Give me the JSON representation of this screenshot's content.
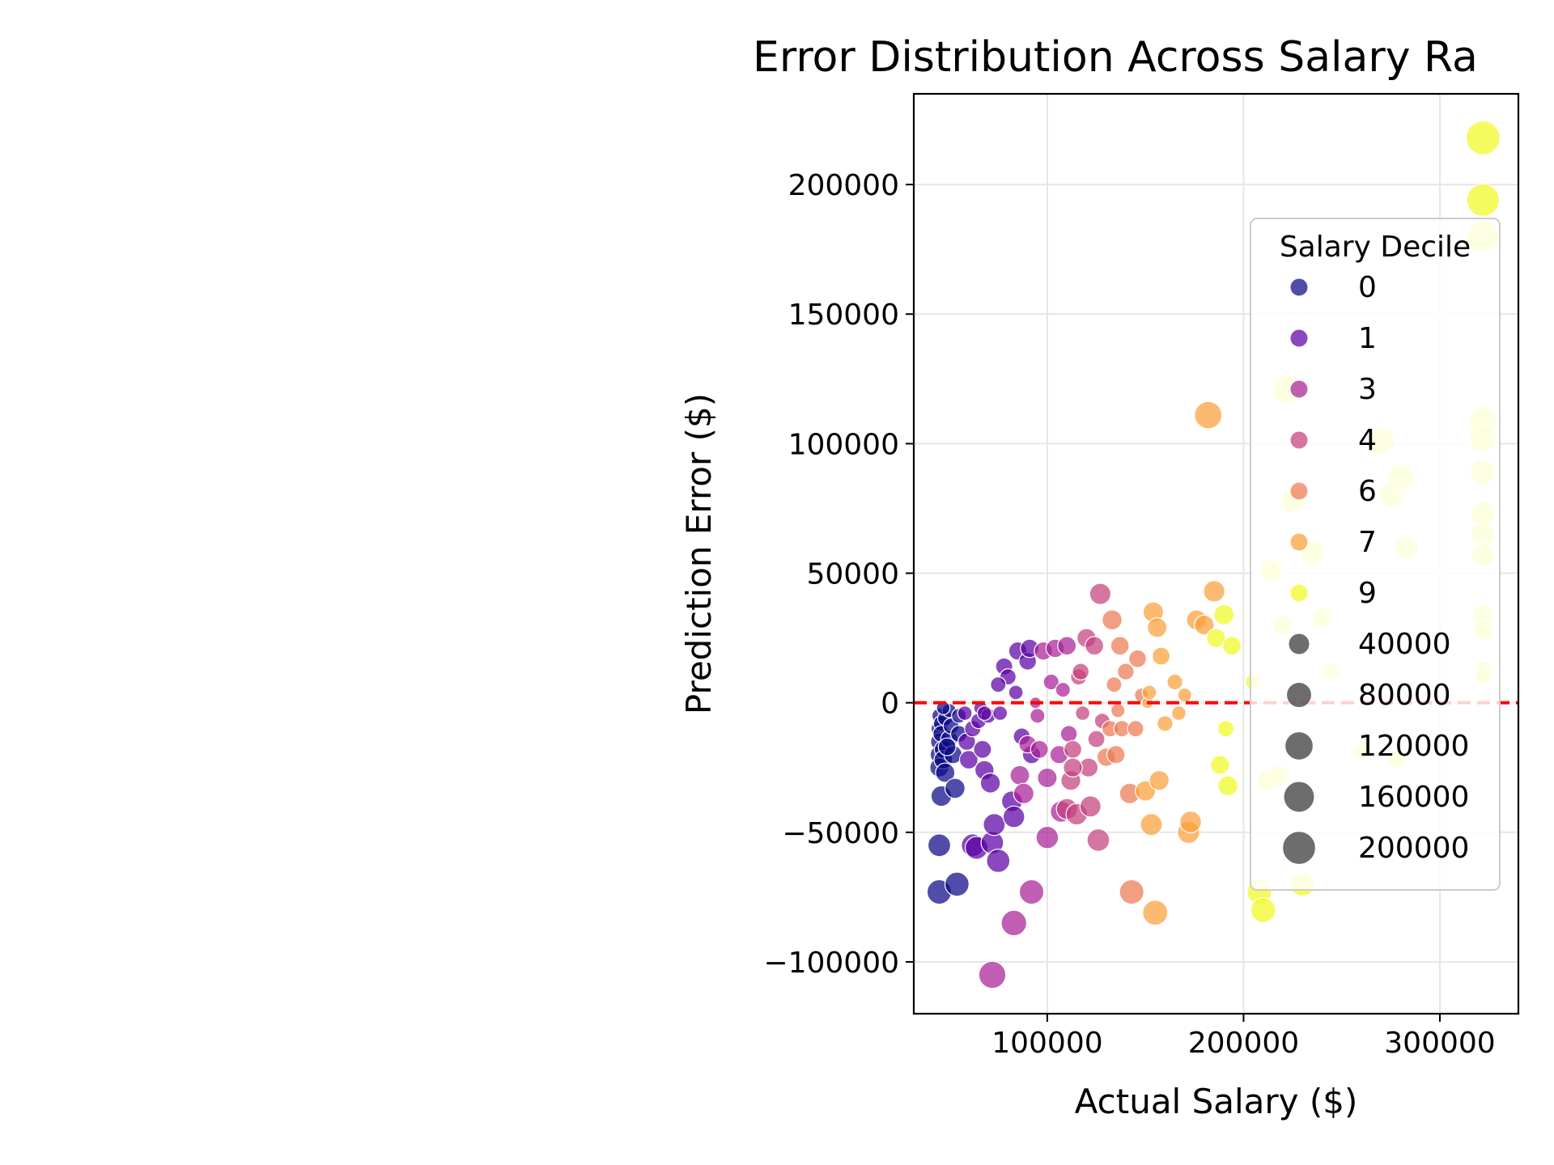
{
  "chart_data": {
    "type": "scatter",
    "title": "Error Distribution Across Salary Ra",
    "xlabel": "Actual Salary ($)",
    "ylabel": "Prediction Error ($)",
    "xlim": [
      32000,
      340000
    ],
    "ylim": [
      -120000,
      235000
    ],
    "xticks": [
      100000,
      200000,
      300000
    ],
    "xtick_labels": [
      "100000",
      "200000",
      "300000"
    ],
    "yticks": [
      -100000,
      -50000,
      0,
      50000,
      100000,
      150000,
      200000
    ],
    "ytick_labels": [
      "−100000",
      "−50000",
      "0",
      "50000",
      "100000",
      "150000",
      "200000"
    ],
    "grid": true,
    "reference_line": {
      "y": 0,
      "color": "#ff0000",
      "style": "dashed"
    },
    "legend": {
      "title": "Salary Decile",
      "placement": "right",
      "hue_entries": [
        {
          "label": "0",
          "color": "#0d0887"
        },
        {
          "label": "1",
          "color": "#5b02a3"
        },
        {
          "label": "3",
          "color": "#a72197"
        },
        {
          "label": "4",
          "color": "#c5407e"
        },
        {
          "label": "6",
          "color": "#ed7953"
        },
        {
          "label": "7",
          "color": "#fb9f3a"
        },
        {
          "label": "9",
          "color": "#f0f921"
        }
      ],
      "size_entries": [
        {
          "label": "40000",
          "value": 40000
        },
        {
          "label": "80000",
          "value": 80000
        },
        {
          "label": "120000",
          "value": 120000
        },
        {
          "label": "160000",
          "value": 160000
        },
        {
          "label": "200000",
          "value": 200000
        }
      ]
    },
    "points": [
      [
        45000,
        -5000,
        0
      ],
      [
        45000,
        -10000,
        0
      ],
      [
        45000,
        -15000,
        0
      ],
      [
        45000,
        -20000,
        0
      ],
      [
        45000,
        -25000,
        0
      ],
      [
        46000,
        -8000,
        0
      ],
      [
        46000,
        -12000,
        0
      ],
      [
        47000,
        -18000,
        0
      ],
      [
        47000,
        -22000,
        0
      ],
      [
        48000,
        -6000,
        0
      ],
      [
        48000,
        -27000,
        0
      ],
      [
        46000,
        -36000,
        0
      ],
      [
        45000,
        -55000,
        0
      ],
      [
        45000,
        -73000,
        0
      ],
      [
        50000,
        -3000,
        0
      ],
      [
        50000,
        -14000,
        0
      ],
      [
        51000,
        -9000,
        0
      ],
      [
        52000,
        -20000,
        0
      ],
      [
        53000,
        -33000,
        0
      ],
      [
        54000,
        -70000,
        0
      ],
      [
        55000,
        -5000,
        0
      ],
      [
        55000,
        -12000,
        0
      ],
      [
        49000,
        -17000,
        0
      ],
      [
        47000,
        -2000,
        0
      ],
      [
        58000,
        -4000,
        1
      ],
      [
        59000,
        -15000,
        1
      ],
      [
        60000,
        -22000,
        1
      ],
      [
        62000,
        -10000,
        1
      ],
      [
        62000,
        -55000,
        1
      ],
      [
        64000,
        -56000,
        1
      ],
      [
        65000,
        -7000,
        1
      ],
      [
        66000,
        -2000,
        1
      ],
      [
        67000,
        -18000,
        1
      ],
      [
        68000,
        -26000,
        1
      ],
      [
        70000,
        -5000,
        1
      ],
      [
        71000,
        -31000,
        1
      ],
      [
        72000,
        -54000,
        1
      ],
      [
        73000,
        -47000,
        1
      ],
      [
        75000,
        -61000,
        1
      ],
      [
        76000,
        -4000,
        1
      ],
      [
        78000,
        14000,
        1
      ],
      [
        80000,
        10000,
        1
      ],
      [
        82000,
        -38000,
        1
      ],
      [
        83000,
        -44000,
        1
      ],
      [
        84000,
        4000,
        1
      ],
      [
        85000,
        20000,
        1
      ],
      [
        87000,
        -13000,
        1
      ],
      [
        90000,
        16000,
        1
      ],
      [
        91000,
        21000,
        1
      ],
      [
        92000,
        -20000,
        1
      ],
      [
        75000,
        7000,
        1
      ],
      [
        68000,
        -4000,
        1
      ],
      [
        86000,
        -28000,
        3
      ],
      [
        88000,
        -35000,
        3
      ],
      [
        90000,
        -16000,
        3
      ],
      [
        92000,
        -73000,
        3
      ],
      [
        94000,
        0,
        3
      ],
      [
        95000,
        -5000,
        3
      ],
      [
        96000,
        -18000,
        3
      ],
      [
        98000,
        20000,
        3
      ],
      [
        100000,
        -29000,
        3
      ],
      [
        100000,
        -52000,
        3
      ],
      [
        102000,
        8000,
        3
      ],
      [
        104000,
        21000,
        3
      ],
      [
        106000,
        -20000,
        3
      ],
      [
        107000,
        -42000,
        3
      ],
      [
        108000,
        5000,
        3
      ],
      [
        110000,
        22000,
        3
      ],
      [
        111000,
        -12000,
        3
      ],
      [
        83000,
        -85000,
        3
      ],
      [
        72000,
        -105000,
        3
      ],
      [
        110000,
        -41000,
        4
      ],
      [
        112000,
        -30000,
        4
      ],
      [
        113000,
        -18000,
        4
      ],
      [
        115000,
        -43000,
        4
      ],
      [
        116000,
        10000,
        4
      ],
      [
        117000,
        12000,
        4
      ],
      [
        118000,
        -4000,
        4
      ],
      [
        120000,
        25000,
        4
      ],
      [
        121000,
        -25000,
        4
      ],
      [
        122000,
        -40000,
        4
      ],
      [
        124000,
        22000,
        4
      ],
      [
        125000,
        -14000,
        4
      ],
      [
        126000,
        -53000,
        4
      ],
      [
        127000,
        42000,
        4
      ],
      [
        128000,
        -7000,
        4
      ],
      [
        113000,
        -25000,
        4
      ],
      [
        130000,
        -21000,
        6
      ],
      [
        132000,
        -10000,
        6
      ],
      [
        133000,
        32000,
        6
      ],
      [
        134000,
        7000,
        6
      ],
      [
        135000,
        -20000,
        6
      ],
      [
        136000,
        -3000,
        6
      ],
      [
        137000,
        22000,
        6
      ],
      [
        138000,
        -10000,
        6
      ],
      [
        140000,
        12000,
        6
      ],
      [
        142000,
        -35000,
        6
      ],
      [
        143000,
        -73000,
        6
      ],
      [
        145000,
        -10000,
        6
      ],
      [
        146000,
        17000,
        6
      ],
      [
        148000,
        3000,
        6
      ],
      [
        150000,
        -34000,
        7
      ],
      [
        151000,
        0,
        7
      ],
      [
        152000,
        4000,
        7
      ],
      [
        153000,
        -47000,
        7
      ],
      [
        154000,
        35000,
        7
      ],
      [
        155000,
        -81000,
        7
      ],
      [
        156000,
        29000,
        7
      ],
      [
        157000,
        -30000,
        7
      ],
      [
        158000,
        18000,
        7
      ],
      [
        160000,
        -8000,
        7
      ],
      [
        165000,
        8000,
        7
      ],
      [
        167000,
        -4000,
        7
      ],
      [
        170000,
        3000,
        7
      ],
      [
        172000,
        -50000,
        7
      ],
      [
        173000,
        -46000,
        7
      ],
      [
        176000,
        32000,
        7
      ],
      [
        180000,
        30000,
        7
      ],
      [
        182000,
        111000,
        7
      ],
      [
        185000,
        43000,
        7
      ],
      [
        186000,
        25000,
        9
      ],
      [
        188000,
        -24000,
        9
      ],
      [
        190000,
        34000,
        9
      ],
      [
        191000,
        -10000,
        9
      ],
      [
        192000,
        -32000,
        9
      ],
      [
        194000,
        22000,
        9
      ],
      [
        205000,
        8000,
        9
      ],
      [
        208000,
        -73000,
        9
      ],
      [
        210000,
        -80000,
        9
      ],
      [
        212000,
        -30000,
        9
      ],
      [
        214000,
        51000,
        9
      ],
      [
        218000,
        -28000,
        9
      ],
      [
        220000,
        30000,
        9
      ],
      [
        222000,
        121000,
        9
      ],
      [
        225000,
        78000,
        9
      ],
      [
        230000,
        -70000,
        9
      ],
      [
        235000,
        58000,
        9
      ],
      [
        240000,
        33000,
        9
      ],
      [
        245000,
        12000,
        9
      ],
      [
        260000,
        -19000,
        9
      ],
      [
        270000,
        101000,
        9
      ],
      [
        275000,
        80000,
        9
      ],
      [
        278000,
        -22000,
        9
      ],
      [
        280000,
        87000,
        9
      ],
      [
        283000,
        60000,
        9
      ],
      [
        322000,
        218000,
        9
      ],
      [
        322000,
        194000,
        9
      ],
      [
        322000,
        180000,
        9
      ],
      [
        322000,
        109000,
        9
      ],
      [
        322000,
        102000,
        9
      ],
      [
        322000,
        89000,
        9
      ],
      [
        322000,
        73000,
        9
      ],
      [
        322000,
        65000,
        9
      ],
      [
        322000,
        57000,
        9
      ],
      [
        322000,
        34000,
        9
      ],
      [
        322000,
        28000,
        9
      ],
      [
        322000,
        13000,
        9
      ],
      [
        322000,
        10000,
        9
      ]
    ]
  }
}
